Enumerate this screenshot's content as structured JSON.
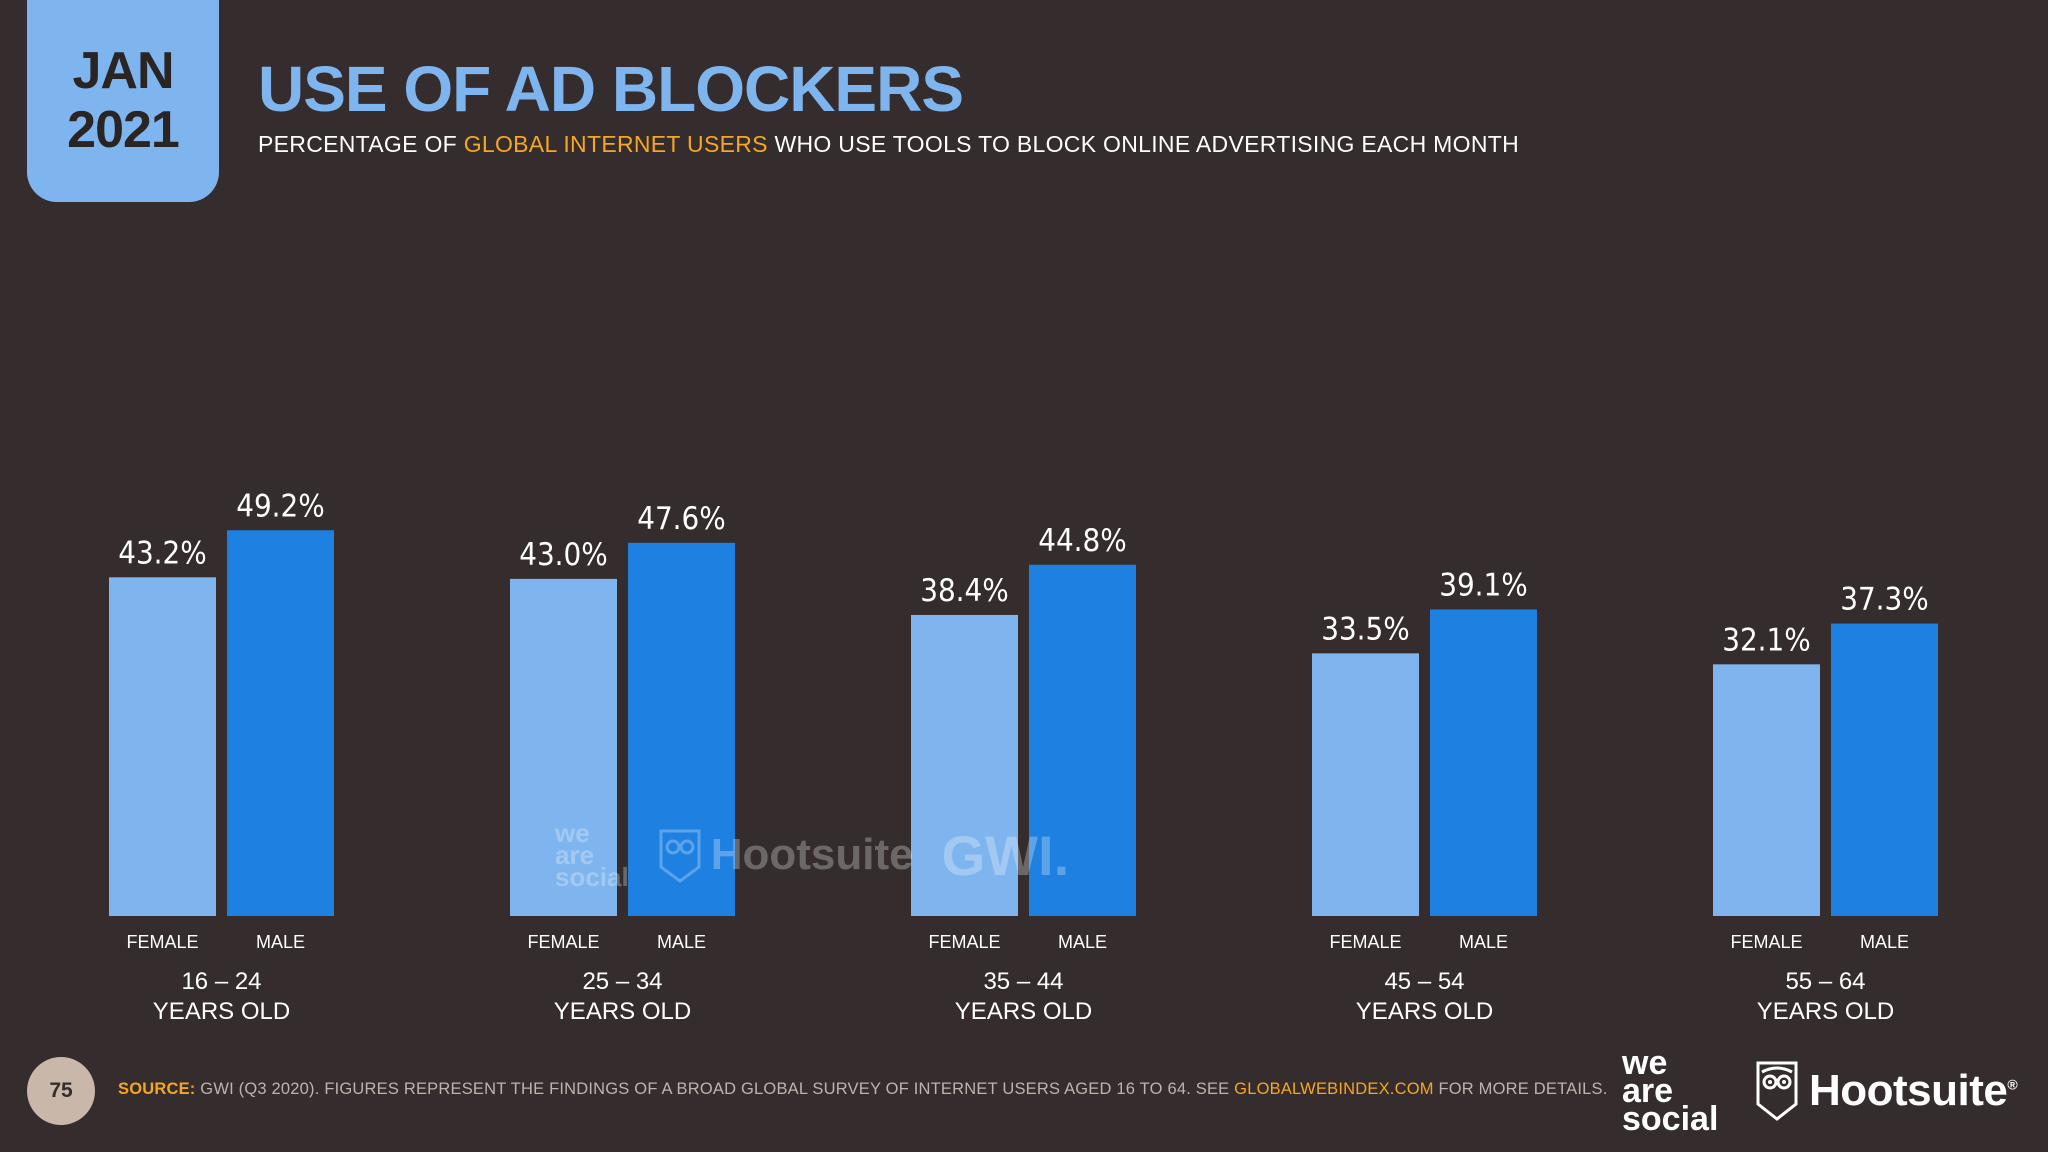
{
  "badge": {
    "month": "JAN",
    "year": "2021"
  },
  "title": "USE OF AD BLOCKERS",
  "subtitle": {
    "pre": "PERCENTAGE OF ",
    "highlight": "GLOBAL INTERNET USERS",
    "post": " WHO USE TOOLS TO BLOCK ONLINE ADVERTISING EACH MONTH"
  },
  "chart_data": {
    "type": "bar",
    "title": "USE OF AD BLOCKERS",
    "xlabel": "",
    "ylabel": "",
    "ylim": [
      0,
      55
    ],
    "grid": false,
    "value_suffix": "%",
    "categories": [
      "16 – 24",
      "25 – 34",
      "35 – 44",
      "45 – 54",
      "55 – 64"
    ],
    "category_sublabel": "YEARS OLD",
    "series": [
      {
        "name": "FEMALE",
        "values": [
          43.2,
          43.0,
          38.4,
          33.5,
          32.1
        ]
      },
      {
        "name": "MALE",
        "values": [
          49.2,
          47.6,
          44.8,
          39.1,
          37.3
        ]
      }
    ]
  },
  "colors": {
    "female_bar": "#7fb5ee",
    "male_bar": "#1e80e1",
    "accent": "#f5a623",
    "background": "#352d2d"
  },
  "watermark": {
    "we": "we",
    "are": "are",
    "social": "social",
    "hootsuite": "Hootsuite",
    "gwi": "GWI."
  },
  "footer": {
    "page_number": "75",
    "source_label": "SOURCE:",
    "source_text": " GWI (Q3 2020). FIGURES REPRESENT THE FINDINGS OF A BROAD GLOBAL SURVEY OF INTERNET USERS AGED 16 TO 64. SEE ",
    "source_link": "GLOBALWEBINDEX.COM",
    "source_post": " FOR MORE DETAILS."
  },
  "logos": {
    "we": "we",
    "are": "are",
    "social": "social",
    "hootsuite": "Hootsuite",
    "reg": "®",
    "owl_icon": "owl-icon"
  }
}
